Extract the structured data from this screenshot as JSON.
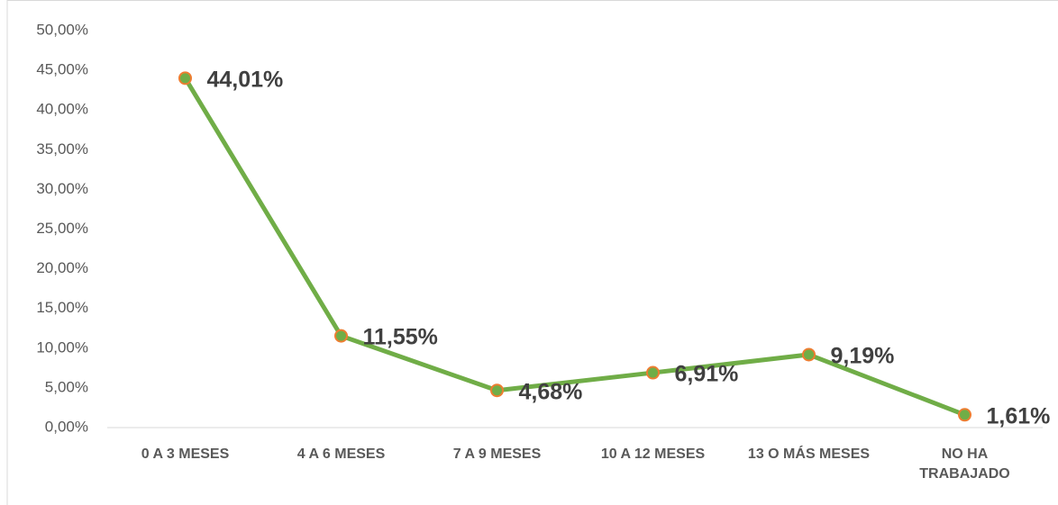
{
  "chart_data": {
    "type": "line",
    "categories": [
      "0 A 3 MESES",
      "4 A 6 MESES",
      "7 A 9 MESES",
      "10 A 12 MESES",
      "13 O MÁS MESES",
      "NO HA TRABAJADO"
    ],
    "values": [
      44.01,
      11.55,
      4.68,
      6.91,
      9.19,
      1.61
    ],
    "value_labels": [
      "44,01%",
      "11,55%",
      "4,68%",
      "6,91%",
      "9,19%",
      "1,61%"
    ],
    "color": "#70ad47",
    "marker_color": "#ed7d31",
    "ylim": [
      0,
      50
    ],
    "yticks": [
      {
        "value": 0,
        "label": "0,00%"
      },
      {
        "value": 5,
        "label": "5,00%"
      },
      {
        "value": 10,
        "label": "10,00%"
      },
      {
        "value": 15,
        "label": "15,00%"
      },
      {
        "value": 20,
        "label": "20,00%"
      },
      {
        "value": 25,
        "label": "25,00%"
      },
      {
        "value": 30,
        "label": "30,00%"
      },
      {
        "value": 35,
        "label": "35,00%"
      },
      {
        "value": 40,
        "label": "40,00%"
      },
      {
        "value": 45,
        "label": "45,00%"
      },
      {
        "value": 50,
        "label": "50,00%"
      }
    ],
    "grid": false
  }
}
